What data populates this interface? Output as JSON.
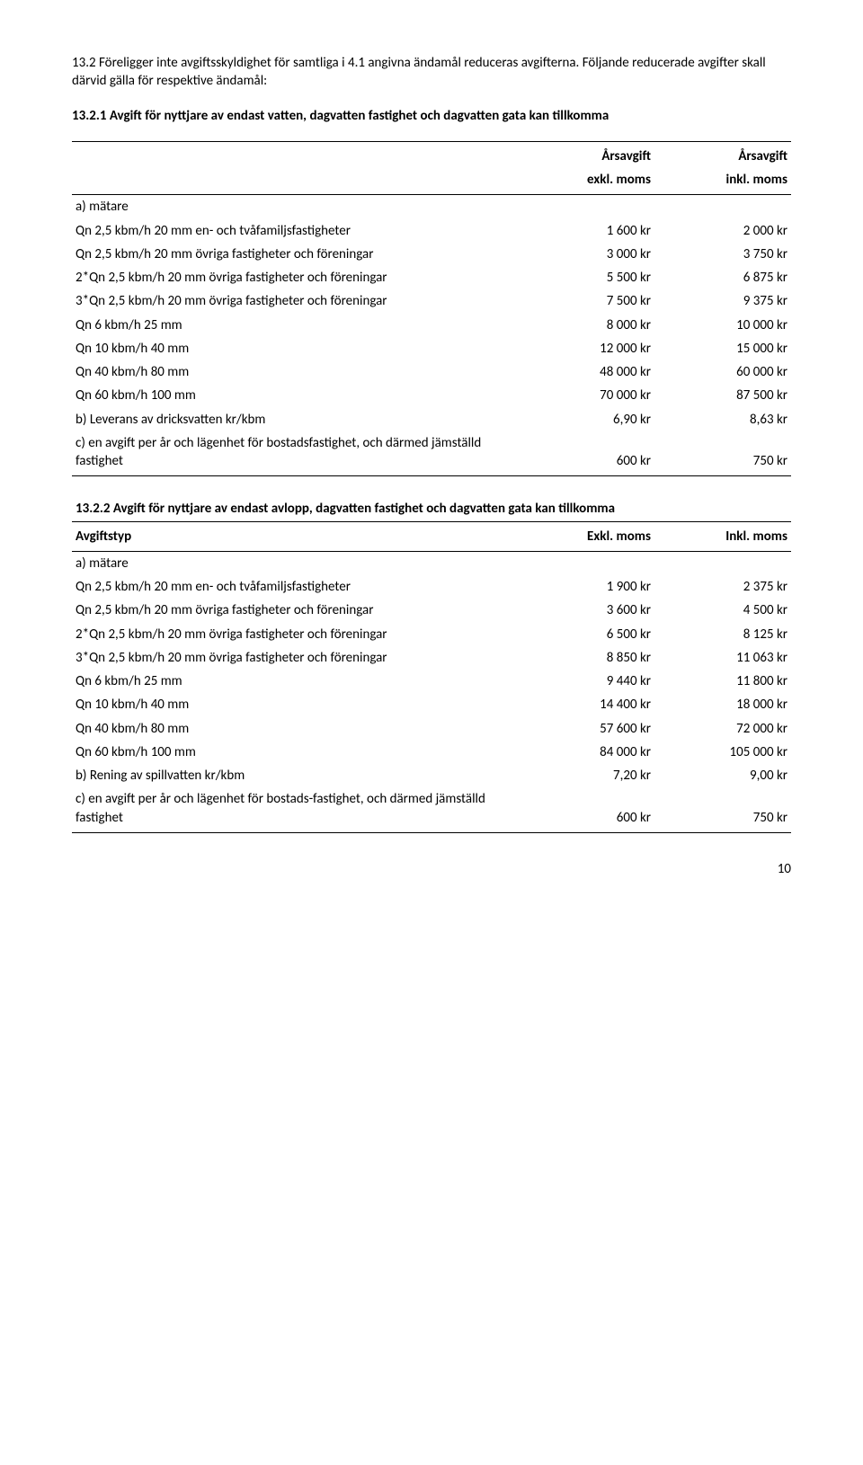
{
  "intro": {
    "p1": "13.2 Föreligger inte avgiftsskyldighet för samtliga i 4.1 angivna ändamål reduceras avgifterna. Följande reducerade avgifter skall därvid gälla för respektive ändamål:",
    "p2": "13.2.1 Avgift för nyttjare av endast vatten, dagvatten fastighet och dagvatten gata kan tillkomma"
  },
  "t1": {
    "hdr1_c2": "Årsavgift",
    "hdr1_c3": "Årsavgift",
    "hdr2_c2": "exkl. moms",
    "hdr2_c3": "inkl. moms",
    "ameter": "a) mätare",
    "rows": [
      {
        "label": "Qn 2,5 kbm/h 20 mm en- och tvåfamiljsfastigheter",
        "v1": "1 600 kr",
        "v2": "2 000 kr"
      },
      {
        "label": "Qn 2,5 kbm/h 20 mm övriga fastigheter och föreningar",
        "v1": "3 000 kr",
        "v2": "3 750 kr"
      },
      {
        "label": "2*Qn 2,5 kbm/h 20 mm övriga fastigheter och föreningar",
        "v1": "5 500 kr",
        "v2": "6 875 kr"
      },
      {
        "label": "3*Qn 2,5 kbm/h 20 mm övriga fastigheter och föreningar",
        "v1": "7 500 kr",
        "v2": "9 375 kr"
      },
      {
        "label": "Qn 6 kbm/h 25 mm",
        "v1": "8 000 kr",
        "v2": "10 000 kr"
      },
      {
        "label": "Qn 10 kbm/h 40 mm",
        "v1": "12 000 kr",
        "v2": "15 000 kr"
      },
      {
        "label": "Qn 40 kbm/h 80 mm",
        "v1": "48 000 kr",
        "v2": "60 000 kr"
      },
      {
        "label": "Qn 60 kbm/h 100 mm",
        "v1": "70 000 kr",
        "v2": "87 500 kr"
      },
      {
        "label": "b) Leverans av dricksvatten kr/kbm",
        "v1": "6,90 kr",
        "v2": "8,63 kr"
      },
      {
        "label": "c) en avgift per år och lägenhet för bostadsfastighet, och därmed jämställd fastighet",
        "v1": "600 kr",
        "v2": "750 kr"
      }
    ]
  },
  "t2": {
    "title": "13.2.2 Avgift för nyttjare av endast avlopp, dagvatten fastighet och dagvatten gata kan tillkomma",
    "hdr_c1": "Avgiftstyp",
    "hdr_c2": "Exkl. moms",
    "hdr_c3": "Inkl. moms",
    "ameter": "a) mätare",
    "rows": [
      {
        "label": "Qn 2,5 kbm/h 20 mm en- och tvåfamiljsfastigheter",
        "v1": "1 900 kr",
        "v2": "2 375 kr"
      },
      {
        "label": "Qn 2,5 kbm/h 20 mm övriga fastigheter och föreningar",
        "v1": "3 600 kr",
        "v2": "4 500 kr"
      },
      {
        "label": "2*Qn 2,5 kbm/h 20 mm övriga fastigheter och föreningar",
        "v1": "6 500 kr",
        "v2": "8 125 kr"
      },
      {
        "label": "3*Qn 2,5 kbm/h 20 mm övriga fastigheter och föreningar",
        "v1": "8 850 kr",
        "v2": "11 063 kr"
      },
      {
        "label": "Qn 6 kbm/h 25 mm",
        "v1": "9 440 kr",
        "v2": "11 800 kr"
      },
      {
        "label": "Qn 10 kbm/h 40 mm",
        "v1": "14 400 kr",
        "v2": "18 000 kr"
      },
      {
        "label": "Qn 40 kbm/h 80 mm",
        "v1": "57 600 kr",
        "v2": "72 000 kr"
      },
      {
        "label": "Qn 60 kbm/h 100 mm",
        "v1": "84 000 kr",
        "v2": "105 000 kr"
      },
      {
        "label": "b) Rening av spillvatten kr/kbm",
        "v1": "7,20 kr",
        "v2": "9,00 kr"
      },
      {
        "label": "c) en avgift per år och lägenhet för bostads-fastighet, och därmed jämställd fastighet",
        "v1": "600 kr",
        "v2": "750 kr"
      }
    ]
  },
  "page_number": "10"
}
